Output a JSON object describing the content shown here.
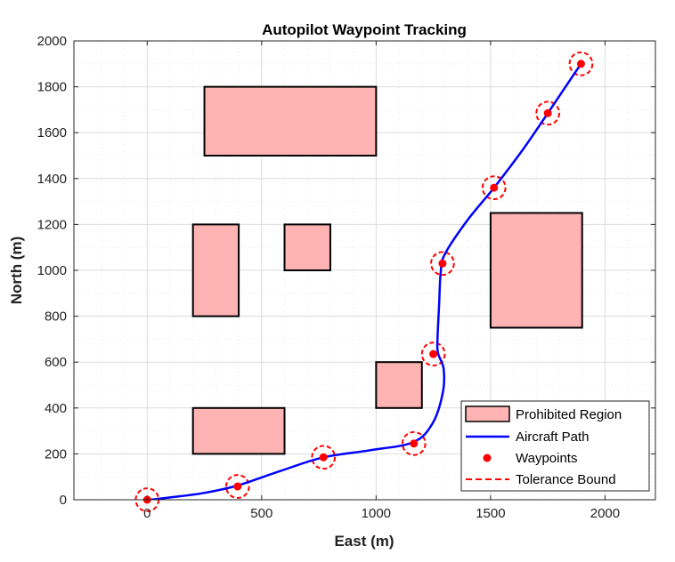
{
  "chart_data": {
    "type": "scatter",
    "title": "Autopilot Waypoint Tracking",
    "xlabel": "East (m)",
    "ylabel": "North (m)",
    "xlim": [
      -320,
      2220
    ],
    "ylim": [
      0,
      2000
    ],
    "xticks": [
      0,
      500,
      1000,
      1500,
      2000
    ],
    "yticks": [
      0,
      200,
      400,
      600,
      800,
      1000,
      1200,
      1400,
      1600,
      1800,
      2000
    ],
    "grid": true,
    "minor_grid": true,
    "legend_position": "bottom-right",
    "legend": [
      "Prohibited Region",
      "Aircraft Path",
      "Waypoints",
      "Tolerance Bound"
    ],
    "colors": {
      "region_fill": "#ffb3b3",
      "region_edge": "#000000",
      "path": "#0000ff",
      "waypoint": "#ff0000",
      "tolerance": "#ff0000"
    },
    "prohibited_regions": [
      {
        "x": [
          250,
          1000
        ],
        "y": [
          1500,
          1800
        ]
      },
      {
        "x": [
          200,
          400
        ],
        "y": [
          800,
          1200
        ]
      },
      {
        "x": [
          600,
          800
        ],
        "y": [
          1000,
          1200
        ]
      },
      {
        "x": [
          1000,
          1200
        ],
        "y": [
          400,
          600
        ]
      },
      {
        "x": [
          200,
          600
        ],
        "y": [
          200,
          400
        ]
      },
      {
        "x": [
          1500,
          1900
        ],
        "y": [
          750,
          1250
        ]
      }
    ],
    "waypoints": [
      {
        "x": 0,
        "y": 0
      },
      {
        "x": 395,
        "y": 58
      },
      {
        "x": 770,
        "y": 185
      },
      {
        "x": 1165,
        "y": 245
      },
      {
        "x": 1250,
        "y": 635
      },
      {
        "x": 1290,
        "y": 1030
      },
      {
        "x": 1515,
        "y": 1360
      },
      {
        "x": 1750,
        "y": 1685
      },
      {
        "x": 1895,
        "y": 1900
      }
    ],
    "aircraft_path": [
      {
        "x": -30,
        "y": -5
      },
      {
        "x": 100,
        "y": 10
      },
      {
        "x": 250,
        "y": 30
      },
      {
        "x": 395,
        "y": 62
      },
      {
        "x": 580,
        "y": 125
      },
      {
        "x": 770,
        "y": 185
      },
      {
        "x": 970,
        "y": 215
      },
      {
        "x": 1160,
        "y": 250
      },
      {
        "x": 1245,
        "y": 330
      },
      {
        "x": 1290,
        "y": 460
      },
      {
        "x": 1295,
        "y": 570
      },
      {
        "x": 1270,
        "y": 640
      },
      {
        "x": 1268,
        "y": 700
      },
      {
        "x": 1275,
        "y": 850
      },
      {
        "x": 1282,
        "y": 990
      },
      {
        "x": 1300,
        "y": 1070
      },
      {
        "x": 1400,
        "y": 1220
      },
      {
        "x": 1515,
        "y": 1360
      },
      {
        "x": 1640,
        "y": 1525
      },
      {
        "x": 1750,
        "y": 1685
      },
      {
        "x": 1895,
        "y": 1900
      }
    ],
    "tolerance_radius": 50
  }
}
